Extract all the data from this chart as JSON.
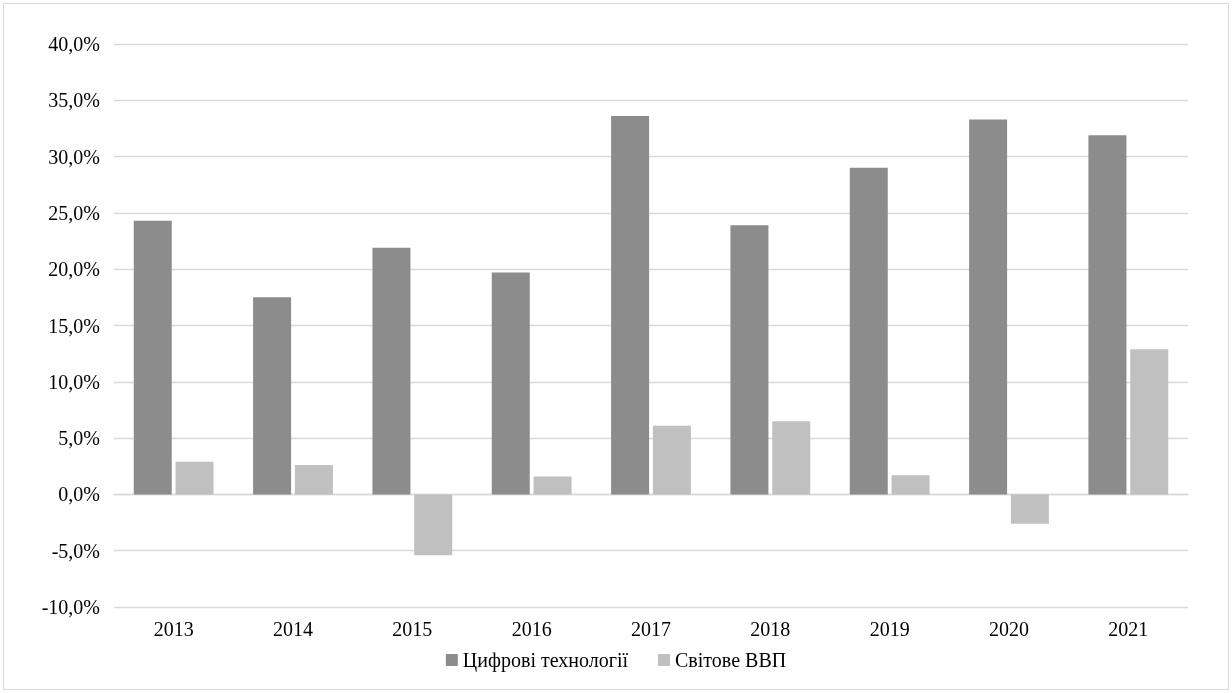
{
  "chart_data": {
    "type": "bar",
    "categories": [
      "2013",
      "2014",
      "2015",
      "2016",
      "2017",
      "2018",
      "2019",
      "2020",
      "2021"
    ],
    "series": [
      {
        "name": "Цифрові технології",
        "color": "#8c8c8c",
        "values": [
          24.3,
          17.5,
          21.9,
          19.7,
          33.6,
          23.9,
          29.0,
          33.3,
          31.9
        ]
      },
      {
        "name": "Світове ВВП",
        "color": "#c0c0c0",
        "values": [
          2.9,
          2.6,
          -5.4,
          1.6,
          6.1,
          6.5,
          1.7,
          -2.6,
          12.9
        ]
      }
    ],
    "ylim": [
      -10,
      40
    ],
    "yticks": [
      {
        "value": -10,
        "label": "-10,0%"
      },
      {
        "value": -5,
        "label": "-5,0%"
      },
      {
        "value": 0,
        "label": "0,0%"
      },
      {
        "value": 5,
        "label": "5,0%"
      },
      {
        "value": 10,
        "label": "10,0%"
      },
      {
        "value": 15,
        "label": "15,0%"
      },
      {
        "value": 20,
        "label": "20,0%"
      },
      {
        "value": 25,
        "label": "25,0%"
      },
      {
        "value": 30,
        "label": "30,0%"
      },
      {
        "value": 35,
        "label": "35,0%"
      },
      {
        "value": 40,
        "label": "40,0%"
      }
    ],
    "grid": "y",
    "legend": "bottom"
  }
}
